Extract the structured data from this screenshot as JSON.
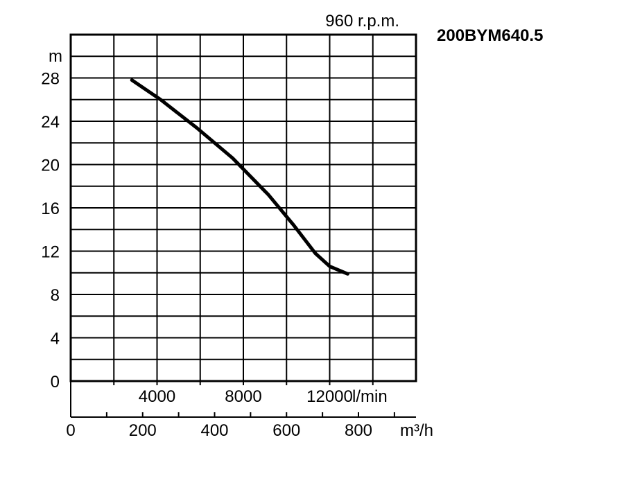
{
  "chart_data": {
    "type": "line",
    "model": "200BYM640.5",
    "speed_label": "960 r.p.m.",
    "y_unit": "m",
    "x_unit": "m³/h",
    "x2_unit": "l/min",
    "xlim": [
      0,
      960
    ],
    "ylim": [
      0,
      32
    ],
    "y_ticks": [
      0,
      4,
      8,
      12,
      16,
      20,
      24,
      28
    ],
    "y_tick_labels": [
      "0",
      "4",
      "8",
      "12",
      "16",
      "20",
      "24",
      "28"
    ],
    "x_ticks": [
      0,
      200,
      400,
      600,
      800
    ],
    "x_tick_labels": [
      "0",
      "200",
      "400",
      "600",
      "800"
    ],
    "x2_ticks": [
      4000,
      8000,
      12000
    ],
    "x2_tick_labels": [
      "4000",
      "8000",
      "12000"
    ],
    "grid": true,
    "series": [
      {
        "x": [
          170,
          250,
          350,
          450,
          550,
          620,
          680,
          720,
          770
        ],
        "y": [
          27.8,
          26.0,
          23.4,
          20.6,
          17.2,
          14.4,
          11.8,
          10.6,
          9.9
        ]
      }
    ]
  }
}
